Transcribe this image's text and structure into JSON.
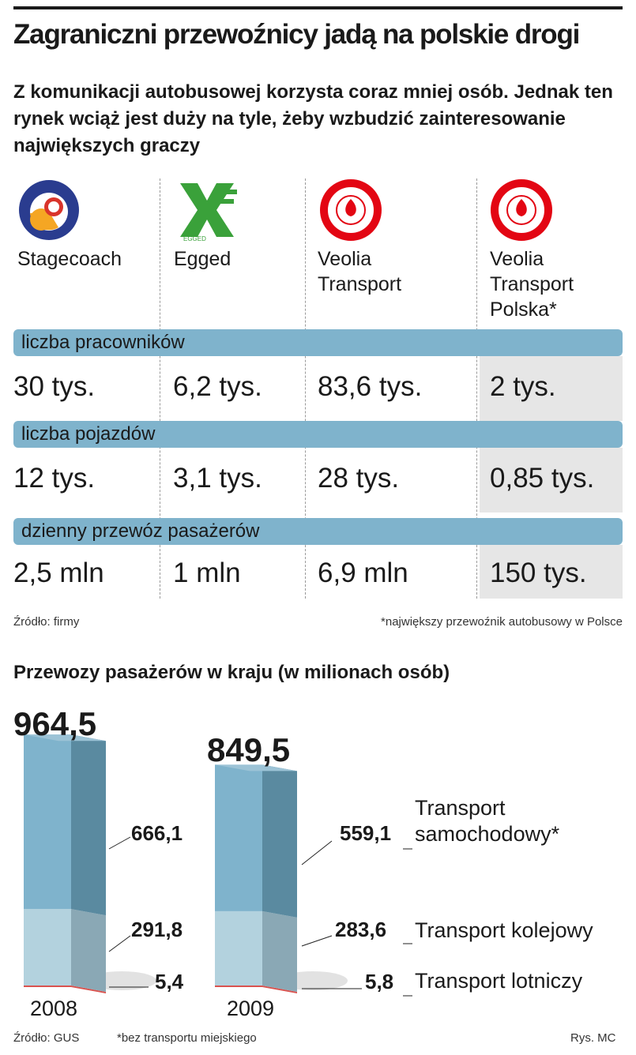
{
  "title": "Zagraniczni przewoźnicy jadą na polskie drogi",
  "subtitle": "Z komunikacji autobusowej korzysta coraz mniej osób. Jednak ten rynek wciąż jest duży na tyle, żeby wzbudzić zainteresowanie największych graczy",
  "companies": [
    {
      "name": "Stagecoach",
      "logo": "stagecoach-logo"
    },
    {
      "name": "Egged",
      "logo": "egged-logo"
    },
    {
      "name": "Veolia\nTransport",
      "logo": "veolia-logo"
    },
    {
      "name": "Veolia\nTransport\nPolska*",
      "logo": "veolia-logo"
    }
  ],
  "logo_text": {
    "egged": "EGGED"
  },
  "metrics": [
    {
      "label": "liczba pracowników",
      "values": [
        "30 tys.",
        "6,2 tys.",
        "83,6 tys.",
        "2 tys."
      ]
    },
    {
      "label": "liczba pojazdów",
      "values": [
        "12 tys.",
        "3,1 tys.",
        "28 tys.",
        "0,85 tys."
      ]
    },
    {
      "label": "dzienny przewóz pasażerów",
      "values": [
        "2,5 mln",
        "1 mln",
        "6,9 mln",
        "150 tys."
      ]
    }
  ],
  "source_table": "Źródło: firmy",
  "footnote_table": "*największy przewoźnik autobusowy w Polsce",
  "colors": {
    "band": "#7fb3cc",
    "road_front": "#7fb3cc",
    "road_side": "#5a8aa0",
    "rail_front": "#b3d2de",
    "rail_side": "#8aa8b5",
    "air": "#d9534f",
    "shade": "#e6e6e6",
    "stagecoach_blue": "#2a3c8f",
    "stagecoach_orange": "#f5a623",
    "egged_green": "#3aa13a",
    "veolia_red": "#e30613"
  },
  "chart_data": {
    "type": "bar",
    "stacked": true,
    "title": "Przewozy pasażerów w kraju (w milionach osób)",
    "categories": [
      "2008",
      "2009"
    ],
    "totals": [
      "964,5",
      "849,5"
    ],
    "series": [
      {
        "name": "Transport\nsamochodowy*",
        "values": [
          666.1,
          559.1
        ],
        "labels": [
          "666,1",
          "559,1"
        ]
      },
      {
        "name": "Transport kolejowy",
        "values": [
          291.8,
          283.6
        ],
        "labels": [
          "291,8",
          "283,6"
        ]
      },
      {
        "name": "Transport lotniczy",
        "values": [
          5.4,
          5.8
        ],
        "labels": [
          "5,4",
          "5,8"
        ]
      }
    ],
    "ylim": [
      0,
      964.5
    ]
  },
  "source_chart": "Źródło: GUS",
  "footnote_chart": "*bez transportu miejskiego",
  "credit": "Rys. MC"
}
